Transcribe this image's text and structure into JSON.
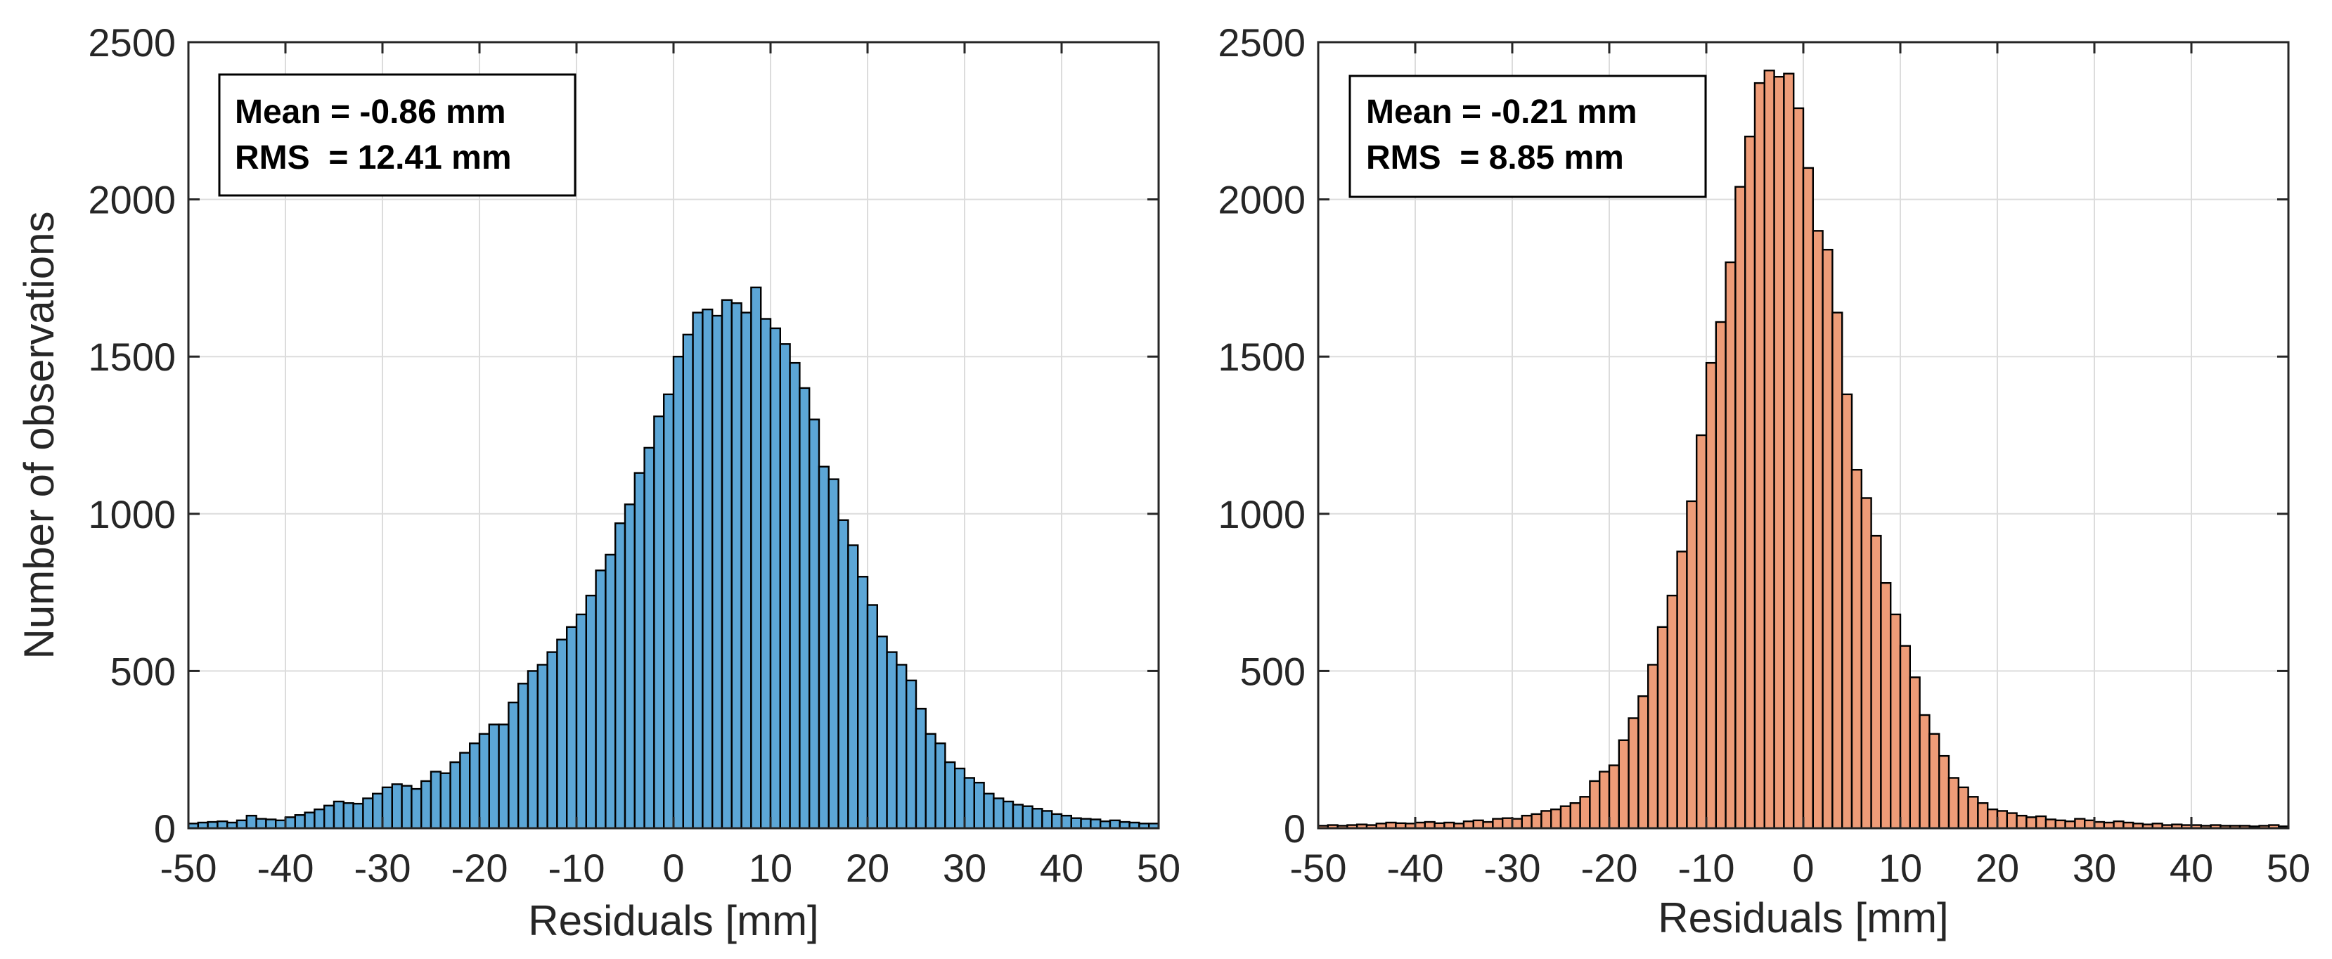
{
  "chart_data": [
    {
      "type": "bar",
      "title": "",
      "xlabel": "Residuals [mm]",
      "ylabel": "Number of observations",
      "xlim": [
        -50,
        50
      ],
      "ylim": [
        0,
        2500
      ],
      "bin_width": 1,
      "xticks": [
        "-50",
        "-40",
        "-30",
        "-20",
        "-10",
        "0",
        "10",
        "20",
        "30",
        "40",
        "50"
      ],
      "yticks": [
        "0",
        "500",
        "1000",
        "1500",
        "2000",
        "2500"
      ],
      "grid": true,
      "bar_color": "#5ca6d6",
      "edge_color": "#000000",
      "stats_box": {
        "mean_text": "Mean = -0.86 mm",
        "rms_text": "RMS  = 12.41 mm",
        "position": "top-left"
      },
      "values": [
        15,
        18,
        20,
        22,
        18,
        25,
        40,
        30,
        28,
        25,
        35,
        42,
        50,
        60,
        72,
        85,
        80,
        78,
        95,
        110,
        130,
        140,
        135,
        125,
        150,
        180,
        175,
        210,
        240,
        270,
        300,
        330,
        330,
        400,
        460,
        500,
        520,
        560,
        600,
        640,
        680,
        740,
        820,
        870,
        970,
        1030,
        1130,
        1210,
        1310,
        1380,
        1500,
        1570,
        1640,
        1650,
        1630,
        1680,
        1670,
        1640,
        1720,
        1620,
        1590,
        1540,
        1480,
        1400,
        1300,
        1150,
        1110,
        980,
        900,
        800,
        710,
        610,
        560,
        520,
        470,
        380,
        300,
        270,
        210,
        190,
        160,
        145,
        110,
        95,
        85,
        75,
        70,
        62,
        55,
        45,
        40,
        32,
        30,
        28,
        22,
        25,
        20,
        18,
        15,
        15
      ]
    },
    {
      "type": "bar",
      "title": "",
      "xlabel": "Residuals [mm]",
      "ylabel": "",
      "xlim": [
        -50,
        50
      ],
      "ylim": [
        0,
        2500
      ],
      "bin_width": 1,
      "xticks": [
        "-50",
        "-40",
        "-30",
        "-20",
        "-10",
        "0",
        "10",
        "20",
        "30",
        "40",
        "50"
      ],
      "yticks": [
        "0",
        "500",
        "1000",
        "1500",
        "2000",
        "2500"
      ],
      "grid": true,
      "bar_color": "#ee9c78",
      "edge_color": "#000000",
      "stats_box": {
        "mean_text": "Mean = -0.21 mm",
        "rms_text": "RMS  = 8.85 mm",
        "position": "top-left"
      },
      "values": [
        8,
        10,
        8,
        10,
        12,
        10,
        15,
        18,
        16,
        15,
        18,
        20,
        16,
        18,
        15,
        22,
        25,
        20,
        30,
        32,
        30,
        40,
        45,
        55,
        60,
        70,
        80,
        100,
        150,
        180,
        200,
        280,
        350,
        420,
        520,
        640,
        740,
        880,
        1040,
        1250,
        1480,
        1610,
        1800,
        2040,
        2200,
        2370,
        2410,
        2390,
        2400,
        2290,
        2100,
        1900,
        1840,
        1640,
        1380,
        1140,
        1050,
        930,
        780,
        680,
        580,
        480,
        360,
        300,
        230,
        160,
        130,
        100,
        80,
        60,
        55,
        48,
        40,
        35,
        38,
        28,
        25,
        22,
        30,
        25,
        20,
        18,
        22,
        18,
        15,
        12,
        15,
        10,
        12,
        10,
        10,
        8,
        10,
        8,
        8,
        8,
        6,
        8,
        10,
        6
      ]
    }
  ]
}
